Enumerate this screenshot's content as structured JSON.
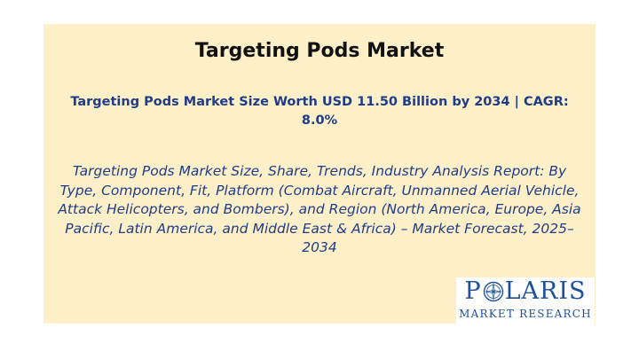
{
  "slide": {
    "title": "Targeting Pods Market",
    "subtitle": "Targeting Pods Market Size Worth USD 11.50 Billion by 2034 | CAGR: 8.0%",
    "description": "Targeting Pods Market Size, Share, Trends, Industry Analysis Report: By Type, Component, Fit, Platform (Combat Aircraft, Unmanned Aerial Vehicle, Attack Helicopters, and Bombers), and Region (North America, Europe, Asia Pacific, Latin America, and Middle East & Africa) – Market Forecast, 2025–2034"
  },
  "logo": {
    "word_start": "P",
    "word_end": "LARIS",
    "tagline": "MARKET RESEARCH",
    "icon": "compass-star-icon"
  },
  "colors": {
    "panel_background": "#fdf0c9",
    "title_text": "#111111",
    "accent_blue": "#1f3c88",
    "logo_blue": "#1d4f9b"
  }
}
